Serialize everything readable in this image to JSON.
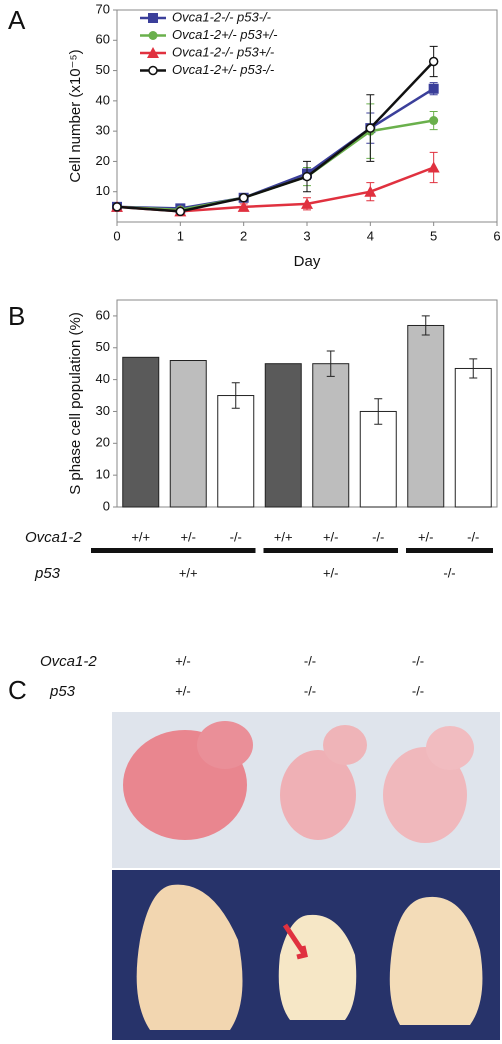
{
  "chart_data": [
    {
      "type": "line",
      "panel": "A",
      "xlabel": "Day",
      "ylabel": "Cell number (x10⁻⁵)",
      "x": [
        0,
        1,
        2,
        3,
        4,
        5
      ],
      "xlim": [
        0,
        6
      ],
      "xticks": [
        0,
        1,
        2,
        3,
        4,
        5,
        6
      ],
      "ylim": [
        0,
        70
      ],
      "yticks": [
        10,
        20,
        30,
        40,
        50,
        60,
        70
      ],
      "series": [
        {
          "name": "Ovca1-2-/- p53-/-",
          "color": "#3b3f9a",
          "marker": "square",
          "values": [
            5,
            4.5,
            8,
            16,
            31,
            44
          ],
          "errors": [
            null,
            null,
            null,
            2,
            5,
            2
          ]
        },
        {
          "name": "Ovca1-2+/- p53+/-",
          "color": "#6ab04c",
          "marker": "circle",
          "values": [
            5,
            4,
            8,
            15,
            30,
            33.5
          ],
          "errors": [
            null,
            null,
            null,
            3,
            9,
            3
          ]
        },
        {
          "name": "Ovca1-2-/- p53+/-",
          "color": "#e0313f",
          "marker": "triangle",
          "values": [
            5,
            3.5,
            5,
            6,
            10,
            18
          ],
          "errors": [
            null,
            null,
            1,
            2,
            3,
            5
          ]
        },
        {
          "name": "Ovca1-2+/- p53-/-",
          "color": "#111111",
          "marker": "open-circle",
          "values": [
            5,
            3.5,
            8,
            15,
            31,
            53
          ],
          "errors": [
            null,
            null,
            null,
            5,
            11,
            5
          ]
        }
      ]
    },
    {
      "type": "grouped_bar",
      "panel": "B",
      "ylabel": "S phase cell population (%)",
      "ylim": [
        0,
        65
      ],
      "yticks": [
        0,
        10,
        20,
        30,
        40,
        50,
        60
      ],
      "category_label": "Ovca1-2",
      "group_label": "p53",
      "groups": [
        {
          "name": "+/+",
          "categories": [
            "+/+",
            "+/-",
            "-/-"
          ],
          "values": [
            47,
            46,
            35
          ],
          "errors": [
            null,
            null,
            4
          ],
          "colors": [
            "#5a5a5a",
            "#bdbdbd",
            "#ffffff"
          ]
        },
        {
          "name": "+/-",
          "categories": [
            "+/+",
            "+/-",
            "-/-"
          ],
          "values": [
            45,
            45,
            30
          ],
          "errors": [
            null,
            4,
            4
          ],
          "colors": [
            "#5a5a5a",
            "#bdbdbd",
            "#ffffff"
          ]
        },
        {
          "name": "-/-",
          "categories": [
            "+/-",
            "-/-"
          ],
          "values": [
            57,
            43.5
          ],
          "errors": [
            3,
            3
          ],
          "colors": [
            "#bdbdbd",
            "#ffffff"
          ]
        }
      ]
    }
  ],
  "panel_c": {
    "label": "C",
    "rows": [
      {
        "name": "Ovca1-2",
        "values": [
          "+/-",
          "-/-",
          "-/-"
        ]
      },
      {
        "name": "p53",
        "values": [
          "+/-",
          "-/-",
          "-/-"
        ]
      }
    ]
  }
}
